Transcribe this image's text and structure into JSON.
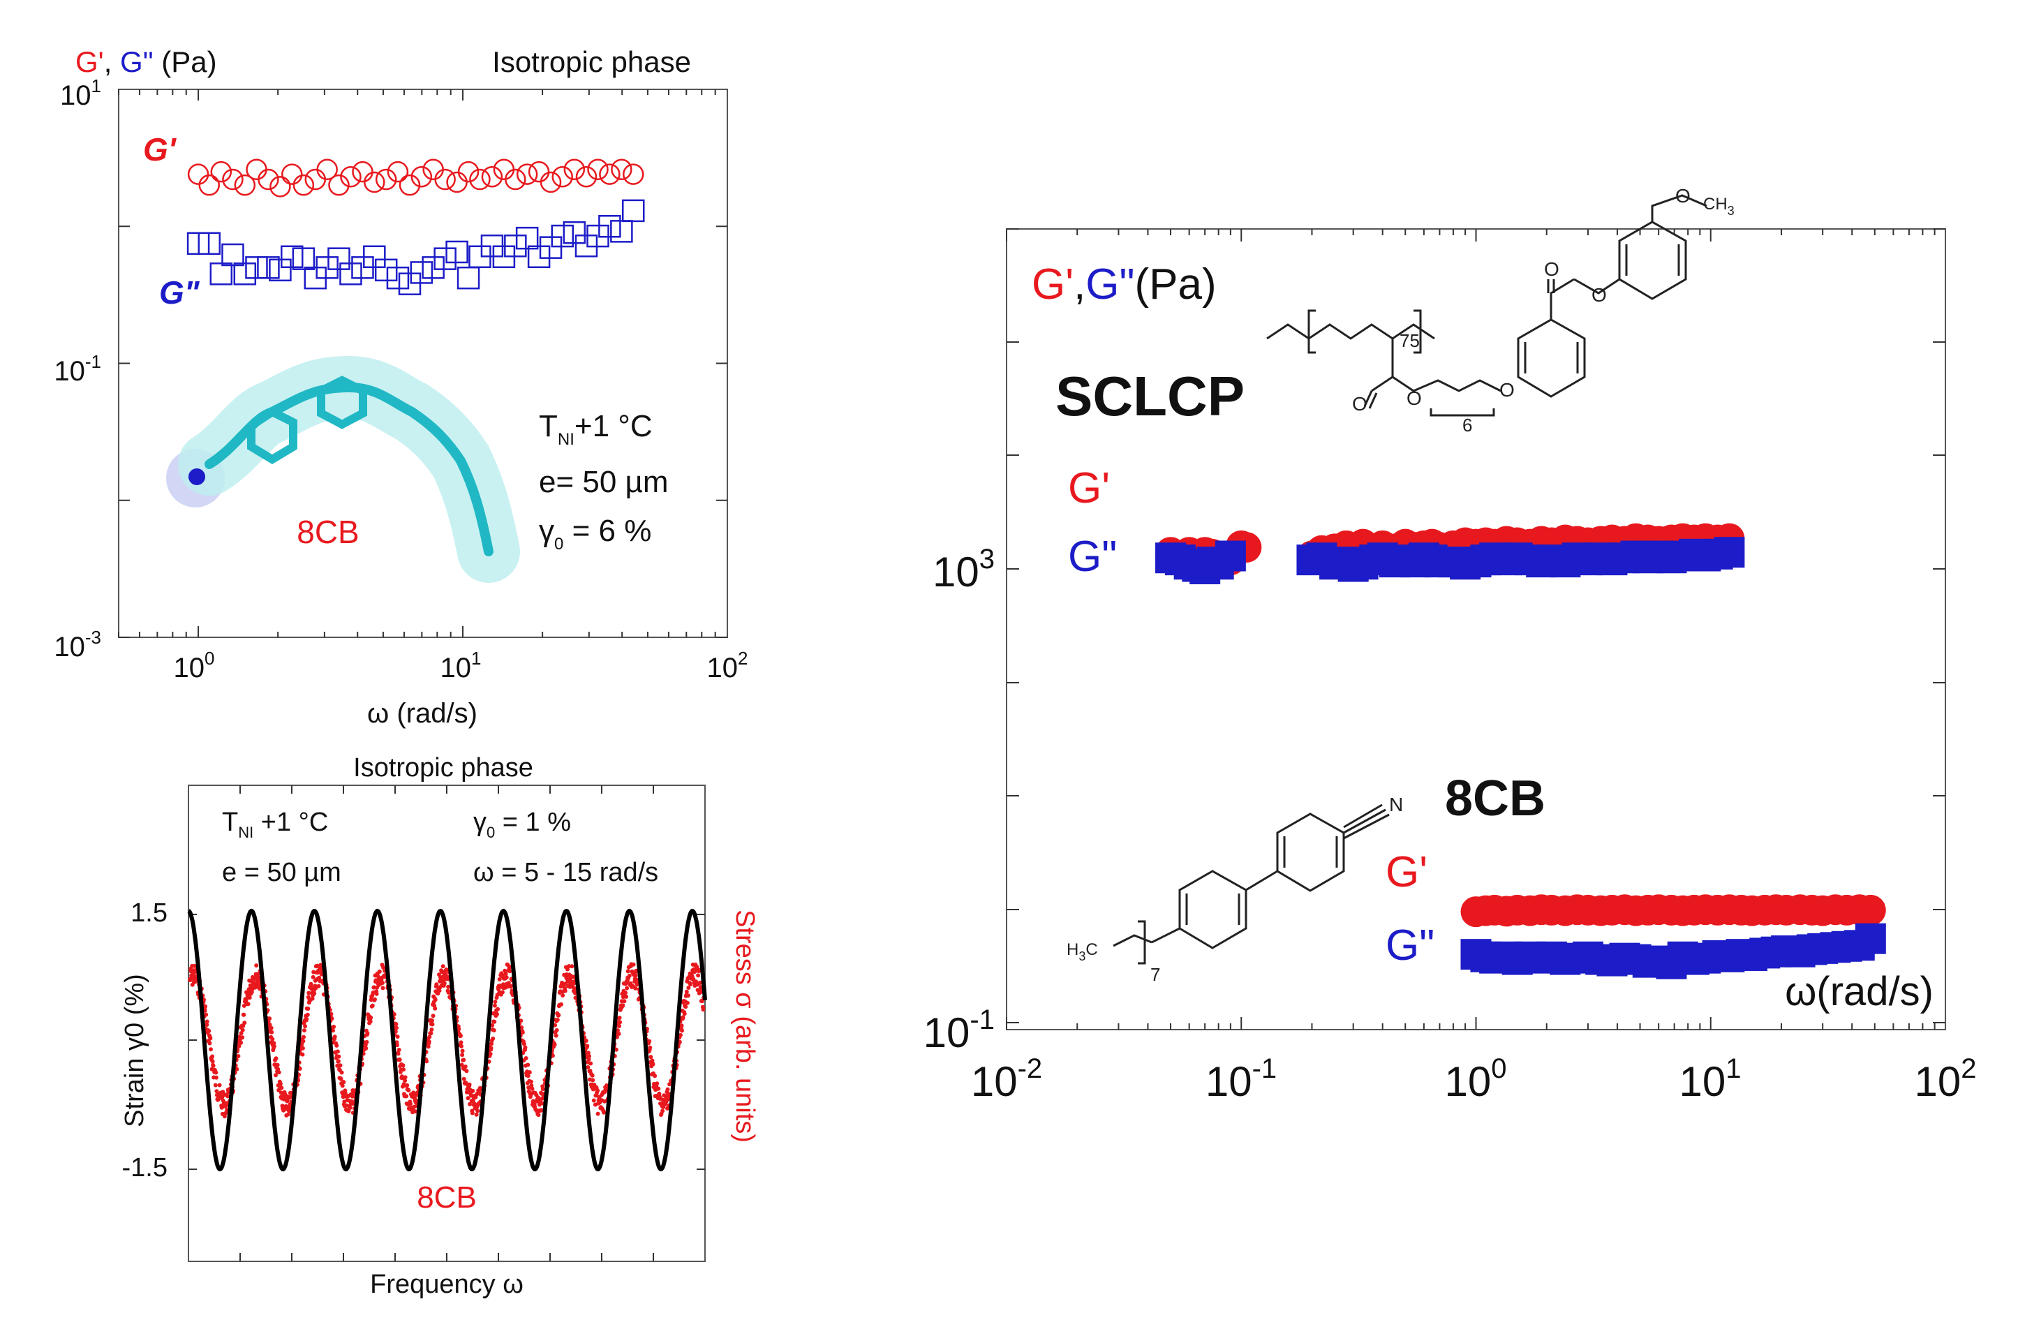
{
  "colors": {
    "gprime": "#e8191e",
    "gdouble": "#1c1cc8",
    "axis": "#222222",
    "text": "#111111"
  },
  "panel_a": {
    "ylabel_gp": "G'",
    "ylabel_sep": ", ",
    "ylabel_gpp": "G\"",
    "ylabel_unit": " (Pa)",
    "title": "Isotropic phase",
    "label_gp": "G'",
    "label_gpp": "G\"",
    "cond_t": "T",
    "cond_t_sub": "NI",
    "cond_t_rest": "+1 °C",
    "cond_e": "e= 50 µm",
    "cond_g": "γ",
    "cond_g_sub": "0",
    "cond_g_rest": " = 6 %",
    "molecule_label": "8CB",
    "xlabel": "ω (rad/s)",
    "xticks": [
      {
        "base": "10",
        "exp": "0"
      },
      {
        "base": "10",
        "exp": "1"
      },
      {
        "base": "10",
        "exp": "2"
      }
    ],
    "yticks": [
      {
        "base": "10",
        "exp": "1"
      },
      {
        "base": "10",
        "exp": "-1"
      },
      {
        "base": "10",
        "exp": "-3"
      }
    ]
  },
  "panel_b": {
    "title": "Isotropic phase",
    "cond_t": "T",
    "cond_t_sub": "NI",
    "cond_t_rest": " +1 °C",
    "cond_e": "e = 50 µm",
    "cond_g": "γ",
    "cond_g_sub": "0",
    "cond_g_rest": " = 1 %",
    "cond_w": "ω = 5 - 15 rad/s",
    "ylabel_left": "Strain γ0 (%)",
    "ylabel_right": "Stress σ (arb. units)",
    "ytick_top": "1.5",
    "ytick_bottom": "-1.5",
    "molecule_label": "8CB",
    "xlabel": "Frequency ω"
  },
  "panel_c": {
    "ylabel_gp": "G'",
    "ylabel_sep": ",",
    "ylabel_gpp": "G\"",
    "ylabel_unit": "(Pa)",
    "sclcp_label": "SCLCP",
    "cb_label": "8CB",
    "sclcp_gp": "G'",
    "sclcp_gpp": "G\"",
    "cb_gp": "G'",
    "cb_gpp": "G\"",
    "xlabel": "ω(rad/s)",
    "xticks": [
      {
        "base": "10",
        "exp": "-2"
      },
      {
        "base": "10",
        "exp": "-1"
      },
      {
        "base": "10",
        "exp": "0"
      },
      {
        "base": "10",
        "exp": "1"
      },
      {
        "base": "10",
        "exp": "2"
      }
    ],
    "yticks": [
      {
        "base": "10",
        "exp": "3"
      },
      {
        "base": "10",
        "exp": "-1"
      }
    ],
    "chem_sclcp": {
      "sub75": "75",
      "sub6": "6",
      "o1": "O",
      "o2": "O",
      "o3": "O",
      "o4": "O",
      "o5": "O",
      "o6": "O",
      "ch3": "CH",
      "ch3_sub": "3"
    },
    "chem_8cb": {
      "n": "N",
      "h3c": "H",
      "h3c_sub": "3",
      "c": "C",
      "sub7": "7"
    }
  },
  "chart_data": [
    {
      "type": "scatter",
      "title": "Isotropic phase",
      "xlabel": "ω (rad/s)",
      "ylabel": "G', G\" (Pa)",
      "xscale": "log",
      "yscale": "log",
      "xlim": [
        0.5,
        100
      ],
      "ylim": [
        0.001,
        10
      ],
      "series": [
        {
          "name": "G'",
          "marker": "open-circle",
          "x": [
            1.0,
            1.1,
            1.22,
            1.35,
            1.5,
            1.66,
            1.84,
            2.04,
            2.26,
            2.5,
            2.77,
            3.07,
            3.4,
            3.77,
            4.18,
            4.63,
            5.13,
            5.68,
            6.3,
            6.98,
            7.73,
            8.57,
            9.5,
            10.5,
            11.6,
            12.9,
            14.3,
            15.8,
            17.5,
            19.4,
            21.5,
            23.8,
            26.4,
            29.3,
            32.4,
            35.9,
            39.8,
            44.1
          ],
          "y": [
            2.4,
            2.0,
            2.5,
            2.2,
            2.0,
            2.6,
            2.2,
            1.95,
            2.4,
            2.0,
            2.2,
            2.6,
            2.0,
            2.3,
            2.5,
            2.1,
            2.2,
            2.5,
            2.0,
            2.3,
            2.6,
            2.2,
            2.1,
            2.5,
            2.2,
            2.3,
            2.6,
            2.2,
            2.4,
            2.5,
            2.1,
            2.3,
            2.6,
            2.3,
            2.6,
            2.4,
            2.6,
            2.4
          ]
        },
        {
          "name": "G\"",
          "marker": "open-square",
          "x": [
            1.0,
            1.1,
            1.22,
            1.35,
            1.5,
            1.66,
            1.84,
            2.04,
            2.26,
            2.5,
            2.77,
            3.07,
            3.4,
            3.77,
            4.18,
            4.63,
            5.13,
            5.68,
            6.3,
            6.98,
            7.73,
            8.57,
            9.5,
            10.5,
            11.6,
            12.9,
            14.3,
            15.8,
            17.5,
            19.4,
            21.5,
            23.8,
            26.4,
            29.3,
            32.4,
            35.9,
            39.8,
            44.1
          ],
          "y": [
            0.75,
            0.75,
            0.45,
            0.62,
            0.45,
            0.5,
            0.5,
            0.48,
            0.6,
            0.58,
            0.42,
            0.5,
            0.58,
            0.45,
            0.5,
            0.6,
            0.48,
            0.42,
            0.38,
            0.46,
            0.5,
            0.58,
            0.65,
            0.42,
            0.6,
            0.72,
            0.6,
            0.72,
            0.82,
            0.6,
            0.7,
            0.85,
            0.9,
            0.72,
            0.85,
            1.0,
            0.92,
            1.3
          ]
        }
      ]
    },
    {
      "type": "line",
      "title": "Isotropic phase",
      "xlabel": "Frequency ω",
      "ylabel": "Strain γ0 (%)",
      "ylabel_right": "Stress σ (arb. units)",
      "yticks": [
        1.5,
        -1.5
      ],
      "ylim": [
        -2.5,
        2.5
      ],
      "series": [
        {
          "name": "Strain",
          "amplitude": 1.5,
          "cycles": 8.2
        },
        {
          "name": "Stress",
          "amplitude": 0.75,
          "cycles": 8.2
        }
      ]
    },
    {
      "type": "scatter",
      "xlabel": "ω(rad/s)",
      "ylabel": "G',G\"(Pa)",
      "xscale": "log",
      "yscale": "log",
      "xlim": [
        0.01,
        100
      ],
      "ylim": [
        0.1,
        1000
      ],
      "annotations": [
        "SCLCP",
        "8CB"
      ],
      "series": [
        {
          "name": "SCLCP G'",
          "marker": "filled-circle",
          "x": [
            0.05,
            0.055,
            0.06,
            0.065,
            0.07,
            0.075,
            0.08,
            0.09,
            0.1,
            0.105,
            0.2,
            0.22,
            0.25,
            0.28,
            0.3,
            0.33,
            0.37,
            0.4,
            0.45,
            0.5,
            0.55,
            0.6,
            0.65,
            0.7,
            0.8,
            0.9,
            1.0,
            1.1,
            1.2,
            1.35,
            1.5,
            1.7,
            1.9,
            2.1,
            2.4,
            2.7,
            3.0,
            3.4,
            3.8,
            4.3,
            4.8,
            5.4,
            6.0,
            6.8,
            7.6,
            8.5,
            9.5,
            10.7,
            12.0
          ],
          "y": [
            1400,
            1300,
            1400,
            1200,
            1400,
            1350,
            1250,
            1200,
            1600,
            1550,
            1300,
            1450,
            1500,
            1600,
            1450,
            1650,
            1500,
            1600,
            1500,
            1650,
            1550,
            1600,
            1650,
            1550,
            1600,
            1700,
            1650,
            1700,
            1650,
            1750,
            1700,
            1650,
            1750,
            1700,
            1800,
            1750,
            1700,
            1750,
            1800,
            1750,
            1850,
            1800,
            1750,
            1800,
            1850,
            1800,
            1850,
            1800,
            1850
          ]
        },
        {
          "name": "SCLCP G\"",
          "marker": "filled-square",
          "x": [
            0.05,
            0.055,
            0.06,
            0.065,
            0.07,
            0.075,
            0.08,
            0.09,
            0.2,
            0.22,
            0.25,
            0.28,
            0.3,
            0.33,
            0.37,
            0.4,
            0.45,
            0.5,
            0.55,
            0.6,
            0.65,
            0.7,
            0.8,
            0.9,
            1.0,
            1.1,
            1.2,
            1.35,
            1.5,
            1.7,
            1.9,
            2.1,
            2.4,
            2.7,
            3.0,
            3.4,
            3.8,
            4.3,
            4.8,
            5.4,
            6.0,
            6.8,
            7.6,
            8.5,
            9.5,
            10.7,
            12.0
          ],
          "y": [
            1250,
            1200,
            1100,
            1050,
            1000,
            1150,
            1100,
            1300,
            1200,
            1250,
            1100,
            1150,
            1050,
            1100,
            1200,
            1250,
            1150,
            1200,
            1150,
            1250,
            1200,
            1150,
            1150,
            1100,
            1150,
            1200,
            1250,
            1200,
            1250,
            1200,
            1150,
            1200,
            1150,
            1250,
            1200,
            1250,
            1200,
            1250,
            1300,
            1250,
            1300,
            1250,
            1300,
            1350,
            1300,
            1350,
            1400
          ]
        },
        {
          "name": "8CB G'",
          "marker": "filled-circle",
          "x": [
            1.0,
            1.1,
            1.2,
            1.35,
            1.5,
            1.7,
            1.9,
            2.1,
            2.4,
            2.7,
            3.0,
            3.4,
            3.8,
            4.3,
            4.8,
            5.4,
            6.0,
            6.8,
            7.6,
            8.5,
            9.5,
            10.7,
            12,
            13.5,
            15,
            17,
            19,
            21,
            24,
            27,
            30,
            34,
            38,
            43,
            48
          ],
          "y": [
            0.95,
            0.97,
            0.98,
            0.96,
            0.98,
            0.97,
            0.99,
            0.98,
            0.97,
            0.99,
            0.98,
            0.97,
            0.98,
            0.99,
            0.97,
            0.98,
            0.99,
            0.98,
            0.97,
            0.98,
            0.99,
            0.98,
            0.99,
            0.98,
            0.97,
            0.98,
            0.99,
            0.98,
            0.99,
            0.98,
            0.97,
            0.99,
            0.98,
            0.99,
            0.98
          ]
        },
        {
          "name": "8CB G\"",
          "marker": "filled-square",
          "x": [
            1.0,
            1.1,
            1.2,
            1.35,
            1.5,
            1.7,
            1.9,
            2.1,
            2.4,
            2.7,
            3.0,
            3.4,
            3.8,
            4.3,
            4.8,
            5.4,
            6.0,
            6.8,
            7.6,
            8.5,
            9.5,
            10.7,
            12,
            13.5,
            15,
            17,
            19,
            21,
            24,
            27,
            30,
            34,
            38,
            43,
            48
          ],
          "y": [
            0.4,
            0.38,
            0.37,
            0.38,
            0.36,
            0.38,
            0.37,
            0.38,
            0.36,
            0.37,
            0.38,
            0.36,
            0.35,
            0.37,
            0.36,
            0.34,
            0.35,
            0.33,
            0.38,
            0.36,
            0.37,
            0.39,
            0.38,
            0.4,
            0.39,
            0.41,
            0.42,
            0.43,
            0.42,
            0.44,
            0.45,
            0.46,
            0.47,
            0.48,
            0.55
          ]
        }
      ]
    }
  ]
}
